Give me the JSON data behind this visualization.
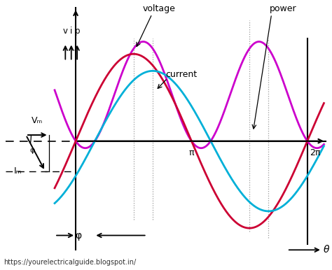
{
  "background_color": "#ffffff",
  "voltage_color": "#cc0033",
  "current_color": "#00b0d8",
  "power_color": "#cc00cc",
  "axis_color": "#000000",
  "dashed_color": "#999999",
  "phi_shift": 0.52,
  "voltage_amp": 0.72,
  "current_amp": 0.58,
  "power_scale": 0.88,
  "pi_val": 3.14159265,
  "label_voltage": "voltage",
  "label_current": "current",
  "label_power": "power",
  "label_phi": "φ",
  "label_theta": "θ",
  "label_pi": "π",
  "label_2pi": "2π",
  "label_vm": "Vₘ",
  "label_im": "Iₘ",
  "label_vip_v": "v",
  "label_vip_i": "i",
  "label_vip_p": "p",
  "website": "https://yourelectricalguide.blogspot.in/",
  "font_size_labels": 9,
  "font_size_axis": 9,
  "font_size_website": 7
}
